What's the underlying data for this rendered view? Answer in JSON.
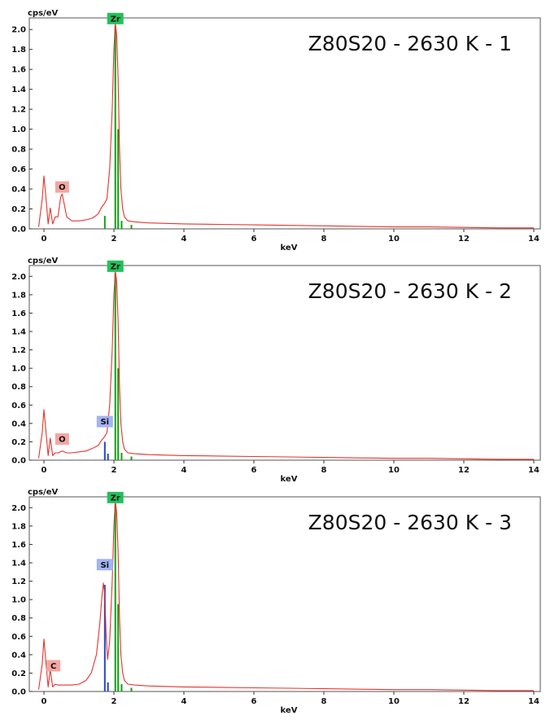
{
  "chart_data": [
    {
      "type": "line",
      "title": "Z80S20 - 2630 K - 1",
      "xlabel": "keV",
      "ylabel": "cps/eV",
      "xlim": [
        0,
        14
      ],
      "ylim": [
        0,
        2.1
      ],
      "xticks": [
        "0",
        "2",
        "4",
        "6",
        "8",
        "10",
        "12",
        "14"
      ],
      "yticks": [
        "0.0",
        "0.2",
        "0.4",
        "0.6",
        "0.8",
        "1.0",
        "1.2",
        "1.4",
        "1.6",
        "1.8",
        "2.0"
      ],
      "series": [
        {
          "color": "#e8322b",
          "x": [
            -0.15,
            -0.05,
            0.0,
            0.06,
            0.12,
            0.18,
            0.25,
            0.32,
            0.4,
            0.48,
            0.52,
            0.58,
            0.65,
            0.8,
            1.0,
            1.2,
            1.4,
            1.55,
            1.65,
            1.72,
            1.8,
            1.88,
            1.95,
            2.0,
            2.04,
            2.08,
            2.12,
            2.16,
            2.2,
            2.25,
            2.3,
            2.4,
            2.6,
            3.0,
            4.0,
            5.0,
            6.0,
            7.0,
            8.0,
            9.0,
            10.0,
            11.0,
            12.0,
            13.0,
            14.0
          ],
          "y": [
            0.02,
            0.3,
            0.53,
            0.3,
            0.05,
            0.21,
            0.05,
            0.12,
            0.12,
            0.32,
            0.35,
            0.25,
            0.12,
            0.08,
            0.08,
            0.09,
            0.11,
            0.15,
            0.22,
            0.25,
            0.3,
            0.6,
            1.2,
            1.8,
            2.06,
            1.95,
            1.5,
            0.8,
            0.4,
            0.2,
            0.12,
            0.08,
            0.07,
            0.06,
            0.05,
            0.045,
            0.04,
            0.035,
            0.03,
            0.025,
            0.02,
            0.02,
            0.015,
            0.01,
            0.01
          ]
        }
      ],
      "element_lines": [
        {
          "x": 1.74,
          "height": 0.13,
          "color": "#12a012"
        },
        {
          "x": 2.04,
          "height": 2.04,
          "color": "#12a012"
        },
        {
          "x": 2.12,
          "height": 1.0,
          "color": "#12a012"
        },
        {
          "x": 2.22,
          "height": 0.08,
          "color": "#12a012"
        },
        {
          "x": 2.5,
          "height": 0.04,
          "color": "#12a012"
        }
      ],
      "element_labels": [
        {
          "label": "Zr",
          "x": 2.04,
          "y": 2.11,
          "bg": "#23c05a"
        },
        {
          "label": "O",
          "x": 0.52,
          "y": 0.42,
          "bg": "#f4a6a0"
        }
      ]
    },
    {
      "type": "line",
      "title": "Z80S20 - 2630 K - 2",
      "xlabel": "keV",
      "ylabel": "cps/eV",
      "xlim": [
        0,
        14
      ],
      "ylim": [
        0,
        2.1
      ],
      "xticks": [
        "0",
        "2",
        "4",
        "6",
        "8",
        "10",
        "12",
        "14"
      ],
      "yticks": [
        "0.0",
        "0.2",
        "0.4",
        "0.6",
        "0.8",
        "1.0",
        "1.2",
        "1.4",
        "1.6",
        "1.8",
        "2.0"
      ],
      "series": [
        {
          "color": "#e8322b",
          "x": [
            -0.15,
            -0.05,
            0.0,
            0.06,
            0.12,
            0.18,
            0.25,
            0.32,
            0.4,
            0.52,
            0.65,
            0.8,
            1.0,
            1.2,
            1.4,
            1.55,
            1.65,
            1.72,
            1.8,
            1.88,
            1.95,
            2.0,
            2.04,
            2.08,
            2.12,
            2.16,
            2.2,
            2.25,
            2.3,
            2.4,
            2.6,
            3.0,
            4.0,
            5.0,
            6.0,
            7.0,
            8.0,
            9.0,
            10.0,
            11.0,
            12.0,
            13.0,
            14.0
          ],
          "y": [
            0.02,
            0.3,
            0.55,
            0.3,
            0.05,
            0.24,
            0.05,
            0.08,
            0.08,
            0.1,
            0.08,
            0.08,
            0.09,
            0.1,
            0.13,
            0.16,
            0.22,
            0.25,
            0.3,
            0.6,
            1.2,
            1.8,
            2.05,
            1.95,
            1.5,
            0.8,
            0.4,
            0.2,
            0.12,
            0.08,
            0.07,
            0.06,
            0.05,
            0.045,
            0.04,
            0.035,
            0.03,
            0.025,
            0.02,
            0.02,
            0.015,
            0.01,
            0.01
          ]
        }
      ],
      "element_lines": [
        {
          "x": 1.74,
          "height": 0.2,
          "color": "#2347c8"
        },
        {
          "x": 1.83,
          "height": 0.07,
          "color": "#2347c8"
        },
        {
          "x": 2.04,
          "height": 2.04,
          "color": "#12a012"
        },
        {
          "x": 2.12,
          "height": 1.0,
          "color": "#12a012"
        },
        {
          "x": 2.22,
          "height": 0.08,
          "color": "#12a012"
        },
        {
          "x": 2.5,
          "height": 0.04,
          "color": "#12a012"
        }
      ],
      "element_labels": [
        {
          "label": "Zr",
          "x": 2.04,
          "y": 2.11,
          "bg": "#23c05a"
        },
        {
          "label": "Si",
          "x": 1.74,
          "y": 0.42,
          "bg": "#a3b3f2"
        },
        {
          "label": "O",
          "x": 0.52,
          "y": 0.23,
          "bg": "#f4a6a0"
        }
      ]
    },
    {
      "type": "line",
      "title": "Z80S20 - 2630 K - 3",
      "xlabel": "keV",
      "ylabel": "cps/eV",
      "xlim": [
        0,
        14
      ],
      "ylim": [
        0,
        2.1
      ],
      "xticks": [
        "0",
        "2",
        "4",
        "6",
        "8",
        "10",
        "12",
        "14"
      ],
      "yticks": [
        "0.0",
        "0.2",
        "0.4",
        "0.6",
        "0.8",
        "1.0",
        "1.2",
        "1.4",
        "1.6",
        "1.8",
        "2.0"
      ],
      "series": [
        {
          "color": "#e8322b",
          "x": [
            -0.15,
            -0.05,
            0.0,
            0.06,
            0.12,
            0.18,
            0.25,
            0.32,
            0.4,
            0.52,
            0.65,
            0.8,
            1.0,
            1.2,
            1.35,
            1.5,
            1.6,
            1.66,
            1.7,
            1.74,
            1.78,
            1.82,
            1.88,
            1.95,
            2.0,
            2.04,
            2.08,
            2.12,
            2.16,
            2.2,
            2.25,
            2.3,
            2.4,
            2.6,
            3.0,
            4.0,
            5.0,
            6.0,
            7.0,
            8.0,
            9.0,
            10.0,
            11.0,
            12.0,
            13.0,
            14.0
          ],
          "y": [
            0.02,
            0.3,
            0.57,
            0.3,
            0.05,
            0.24,
            0.05,
            0.08,
            0.07,
            0.07,
            0.07,
            0.07,
            0.08,
            0.12,
            0.2,
            0.4,
            0.75,
            1.05,
            1.18,
            1.05,
            0.6,
            0.35,
            0.55,
            1.2,
            1.8,
            2.07,
            1.95,
            1.5,
            0.8,
            0.4,
            0.2,
            0.12,
            0.08,
            0.07,
            0.06,
            0.05,
            0.045,
            0.04,
            0.035,
            0.03,
            0.025,
            0.02,
            0.02,
            0.015,
            0.01,
            0.01
          ]
        }
      ],
      "element_lines": [
        {
          "x": 1.74,
          "height": 1.16,
          "color": "#2347c8"
        },
        {
          "x": 1.83,
          "height": 0.1,
          "color": "#2347c8"
        },
        {
          "x": 2.04,
          "height": 2.04,
          "color": "#12a012"
        },
        {
          "x": 2.12,
          "height": 0.95,
          "color": "#12a012"
        },
        {
          "x": 2.22,
          "height": 0.08,
          "color": "#12a012"
        },
        {
          "x": 2.5,
          "height": 0.04,
          "color": "#12a012"
        }
      ],
      "element_labels": [
        {
          "label": "Zr",
          "x": 2.04,
          "y": 2.11,
          "bg": "#23c05a"
        },
        {
          "label": "Si",
          "x": 1.74,
          "y": 1.38,
          "bg": "#a3b3f2"
        },
        {
          "label": "C",
          "x": 0.27,
          "y": 0.28,
          "bg": "#f4a6a0"
        }
      ]
    }
  ]
}
